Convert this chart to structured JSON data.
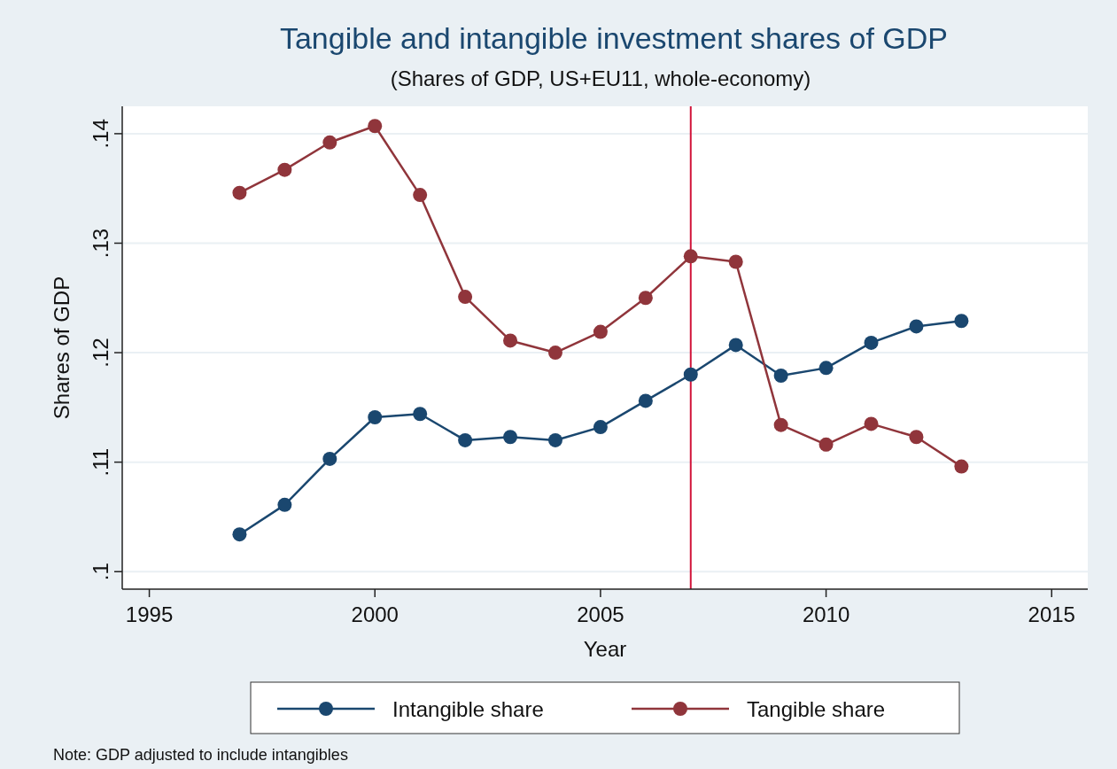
{
  "chart_data": {
    "type": "line",
    "title": "Tangible and intangible investment shares of GDP",
    "subtitle": "(Shares of GDP, US+EU11, whole-economy)",
    "xlabel": "Year",
    "ylabel": "Shares of GDP",
    "x": [
      1997,
      1998,
      1999,
      2000,
      2001,
      2002,
      2003,
      2004,
      2005,
      2006,
      2007,
      2008,
      2009,
      2010,
      2011,
      2012,
      2013
    ],
    "series": [
      {
        "name": "Intangible share",
        "color": "#1a476f",
        "values": [
          0.1034,
          0.1061,
          0.1103,
          0.1141,
          0.1144,
          0.112,
          0.1123,
          0.112,
          0.1132,
          0.1156,
          0.118,
          0.1207,
          0.1179,
          0.1186,
          0.1209,
          0.1224,
          0.1229
        ]
      },
      {
        "name": "Tangible share",
        "color": "#90353b",
        "values": [
          0.1346,
          0.1367,
          0.1392,
          0.1407,
          0.1344,
          0.1251,
          0.1211,
          0.12,
          0.1219,
          0.125,
          0.1288,
          0.1283,
          0.1134,
          0.1116,
          0.1135,
          0.1123,
          0.1096
        ]
      }
    ],
    "xlim": [
      1994.4,
      2015.8
    ],
    "ylim": [
      0.0984,
      0.1425
    ],
    "xticks": [
      1995,
      2000,
      2005,
      2010,
      2015
    ],
    "yticks": [
      {
        "value": 0.1,
        "label": ".1"
      },
      {
        "value": 0.11,
        "label": ".11"
      },
      {
        "value": 0.12,
        "label": ".12"
      },
      {
        "value": 0.13,
        "label": ".13"
      },
      {
        "value": 0.14,
        "label": ".14"
      }
    ],
    "ref_lines": [
      {
        "axis": "x",
        "value": 2007,
        "color": "#d2143a"
      }
    ],
    "grid": "y",
    "legend": "bottom",
    "marker": "circle",
    "line_style": "solid",
    "annotations": [
      "Note: GDP adjusted to include intangibles"
    ]
  }
}
